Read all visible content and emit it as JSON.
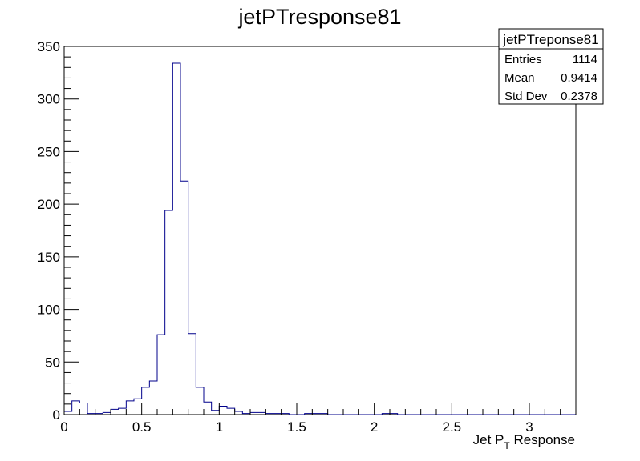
{
  "chart_data": {
    "type": "bar",
    "title": "jetPTresponse81",
    "xlabel": {
      "main": "Jet P",
      "sub": "T",
      "rest": " Response"
    },
    "ylabel": "",
    "xlim": [
      0,
      3.3
    ],
    "ylim": [
      0,
      350
    ],
    "bin_width": 0.05,
    "x_ticks": [
      "0",
      "0.5",
      "1",
      "1.5",
      "2",
      "2.5",
      "3"
    ],
    "y_ticks": [
      "0",
      "50",
      "100",
      "150",
      "200",
      "250",
      "300",
      "350"
    ],
    "values": [
      3,
      13,
      11,
      1,
      1,
      2,
      5,
      6,
      13,
      15,
      26,
      32,
      76,
      194,
      334,
      222,
      77,
      26,
      12,
      4,
      8,
      6,
      3,
      1,
      2,
      2,
      1,
      1,
      1,
      0,
      0,
      1,
      1,
      1,
      0,
      0,
      0,
      0,
      0,
      0,
      0,
      1,
      1,
      0,
      0,
      0,
      0,
      0,
      0,
      0,
      0,
      0,
      0,
      0,
      0,
      0,
      0,
      0,
      0,
      0,
      0,
      0,
      0,
      0,
      0,
      0
    ],
    "line_color": "#00008b",
    "grid": false,
    "legend": "none",
    "stats_box": {
      "title": "jetPTreponse81",
      "rows": [
        {
          "label": "Entries",
          "value": "1114"
        },
        {
          "label": "Mean",
          "value": "0.9414"
        },
        {
          "label": "Std Dev",
          "value": "0.2378"
        }
      ],
      "placement": "top-right"
    }
  }
}
